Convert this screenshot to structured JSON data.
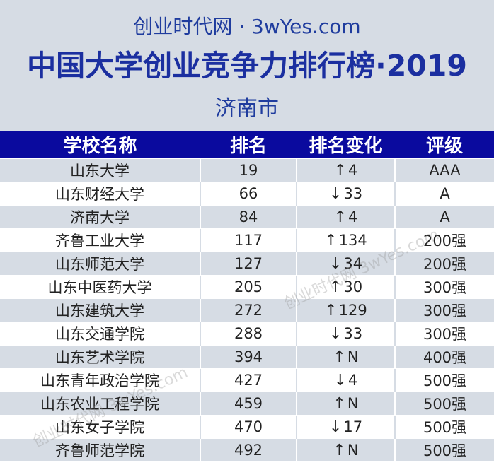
{
  "header": {
    "site_line": "创业时代网 · 3wYes.com",
    "title": "中国大学创业竞争力排行榜·2019",
    "city": "济南市"
  },
  "table": {
    "columns": [
      "学校名称",
      "排名",
      "排名变化",
      "评级"
    ],
    "rows": [
      {
        "name": "山东大学",
        "rank": "19",
        "dir": "up",
        "arrow": "↑",
        "change": "4",
        "grade": "AAA"
      },
      {
        "name": "山东财经大学",
        "rank": "66",
        "dir": "down",
        "arrow": "↓",
        "change": "33",
        "grade": "A"
      },
      {
        "name": "济南大学",
        "rank": "84",
        "dir": "up",
        "arrow": "↑",
        "change": "4",
        "grade": "A"
      },
      {
        "name": "齐鲁工业大学",
        "rank": "117",
        "dir": "up",
        "arrow": "↑",
        "change": "134",
        "grade": "200强"
      },
      {
        "name": "山东师范大学",
        "rank": "127",
        "dir": "down",
        "arrow": "↓",
        "change": "34",
        "grade": "200强"
      },
      {
        "name": "山东中医药大学",
        "rank": "205",
        "dir": "up",
        "arrow": "↑",
        "change": "30",
        "grade": "300强"
      },
      {
        "name": "山东建筑大学",
        "rank": "272",
        "dir": "up",
        "arrow": "↑",
        "change": "129",
        "grade": "300强"
      },
      {
        "name": "山东交通学院",
        "rank": "288",
        "dir": "down",
        "arrow": "↓",
        "change": "33",
        "grade": "300强"
      },
      {
        "name": "山东艺术学院",
        "rank": "394",
        "dir": "up",
        "arrow": "↑",
        "change": "N",
        "grade": "400强"
      },
      {
        "name": "山东青年政治学院",
        "rank": "427",
        "dir": "down",
        "arrow": "↓",
        "change": "4",
        "grade": "500强"
      },
      {
        "name": "山东农业工程学院",
        "rank": "459",
        "dir": "up",
        "arrow": "↑",
        "change": "N",
        "grade": "500强"
      },
      {
        "name": "山东女子学院",
        "rank": "470",
        "dir": "down",
        "arrow": "↓",
        "change": "17",
        "grade": "500强"
      },
      {
        "name": "齐鲁师范学院",
        "rank": "492",
        "dir": "up",
        "arrow": "↑",
        "change": "N",
        "grade": "500强"
      }
    ]
  },
  "watermark": {
    "text_1": "创业时代网 3wYes.com",
    "text_2": "创业时代网 3wYes.com"
  },
  "colors": {
    "header_bg": "#d6dce4",
    "table_header_bg": "#0a0a9e",
    "title_color": "#1b2fa0",
    "stripe": "#d6dce4"
  }
}
